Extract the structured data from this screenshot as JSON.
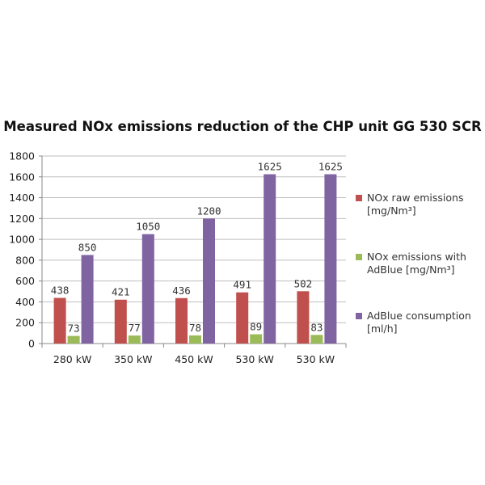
{
  "chart_data": {
    "type": "bar",
    "title": "Measured NOx emissions reduction of the CHP unit GG 530 SCR",
    "xlabel": "",
    "ylabel": "",
    "ylim": [
      0,
      1800
    ],
    "yticks": [
      0,
      200,
      400,
      600,
      800,
      1000,
      1200,
      1400,
      1600,
      1800
    ],
    "categories": [
      "280 kW",
      "350 kW",
      "450 kW",
      "530 kW",
      "530 kW"
    ],
    "series": [
      {
        "name": "NOx raw emissions [mg/Nm³]",
        "color": "#c0504d",
        "values": [
          438,
          421,
          436,
          491,
          502
        ]
      },
      {
        "name": "NOx emissions with AdBlue [mg/Nm³]",
        "color": "#9bbb59",
        "values": [
          73,
          77,
          78,
          89,
          83
        ]
      },
      {
        "name": "AdBlue consumption [ml/h]",
        "color": "#8064a2",
        "values": [
          850,
          1050,
          1200,
          1625,
          1625
        ]
      }
    ],
    "legend_position": "right",
    "grid": true
  }
}
